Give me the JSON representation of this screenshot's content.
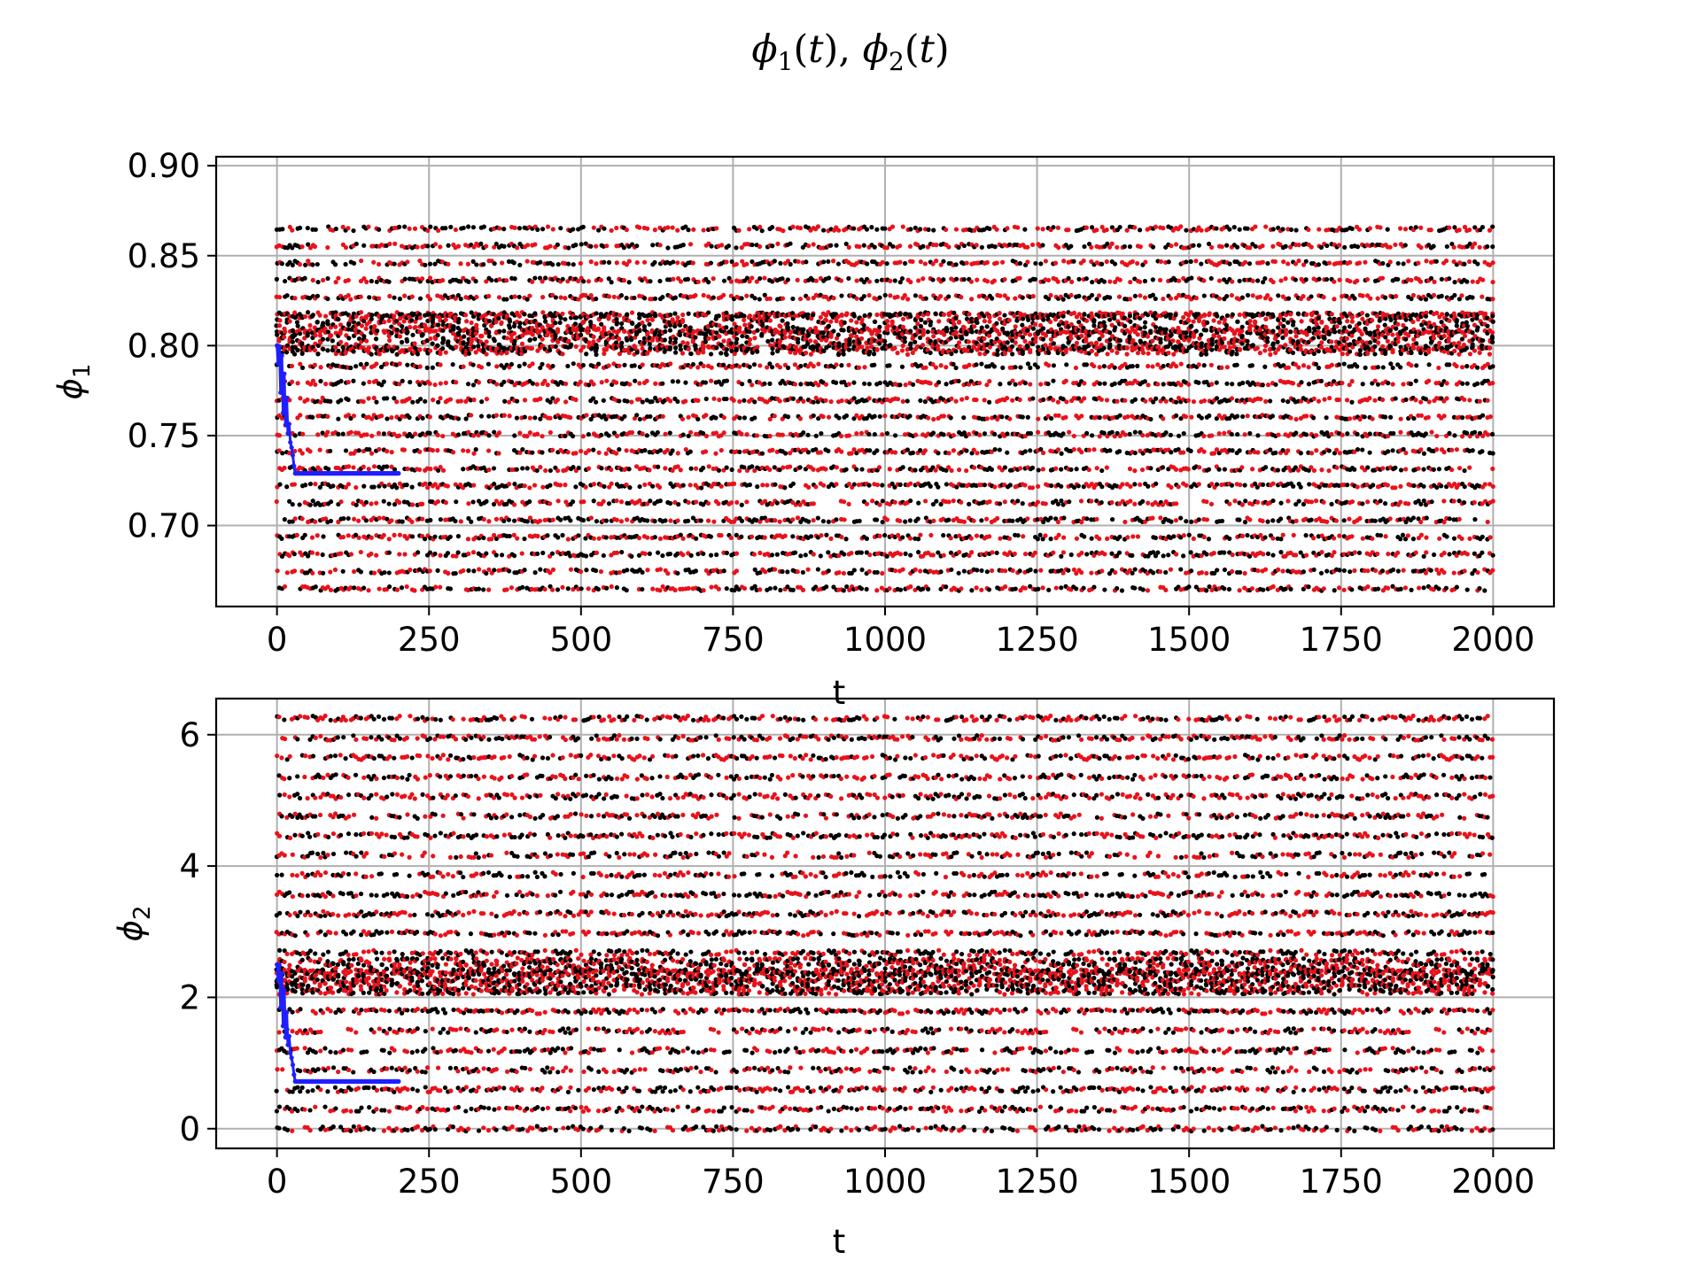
{
  "figure": {
    "title": "ϕ1(t), ϕ2(t)",
    "title_parts": {
      "phi": "ϕ",
      "sub1": "1",
      "sub2": "2",
      "open": "(",
      "t": "t",
      "close": ")",
      "sep": ", "
    }
  },
  "chart_data": [
    {
      "type": "scatter",
      "xlabel": "t",
      "ylabel": "ϕ1",
      "ylabel_parts": {
        "base": "ϕ",
        "sub": "1"
      },
      "xlim": [
        -100,
        2100
      ],
      "ylim": [
        0.655,
        0.905
      ],
      "xticks": [
        0,
        250,
        500,
        750,
        1000,
        1250,
        1500,
        1750,
        2000
      ],
      "yticks": [
        0.7,
        0.75,
        0.8,
        0.85,
        0.9
      ],
      "ytick_labels": [
        "0.70",
        "0.75",
        "0.80",
        "0.85",
        "0.90"
      ],
      "grid": true,
      "series": [
        {
          "color": "#000000",
          "pattern": "oscillation",
          "x_range": [
            0,
            2000
          ],
          "band": [
            0.665,
            0.865
          ],
          "dense_band": [
            0.795,
            0.818
          ]
        },
        {
          "color": "#e8121b",
          "pattern": "oscillation",
          "x_range": [
            0,
            2000
          ],
          "band": [
            0.665,
            0.865
          ],
          "dense_band": [
            0.795,
            0.818
          ]
        },
        {
          "color": "#1f1fff",
          "pattern": "converging",
          "x_range": [
            0,
            200
          ],
          "start": 0.8,
          "steady": 0.729
        }
      ]
    },
    {
      "type": "scatter",
      "xlabel": "t",
      "ylabel": "ϕ2",
      "ylabel_parts": {
        "base": "ϕ",
        "sub": "2"
      },
      "xlim": [
        -100,
        2100
      ],
      "ylim": [
        -0.3,
        6.55
      ],
      "xticks": [
        0,
        250,
        500,
        750,
        1000,
        1250,
        1500,
        1750,
        2000
      ],
      "yticks": [
        0,
        2,
        4,
        6
      ],
      "ytick_labels": [
        "0",
        "2",
        "4",
        "6"
      ],
      "grid": true,
      "series": [
        {
          "color": "#000000",
          "pattern": "oscillation",
          "x_range": [
            0,
            2000
          ],
          "band": [
            0.0,
            6.25
          ],
          "dense_band": [
            2.1,
            2.6
          ]
        },
        {
          "color": "#e8121b",
          "pattern": "oscillation",
          "x_range": [
            0,
            2000
          ],
          "band": [
            0.0,
            6.25
          ],
          "dense_band": [
            2.1,
            2.6
          ]
        },
        {
          "color": "#1f1fff",
          "pattern": "converging",
          "x_range": [
            0,
            200
          ],
          "start": 2.5,
          "steady": 0.72
        }
      ]
    }
  ]
}
